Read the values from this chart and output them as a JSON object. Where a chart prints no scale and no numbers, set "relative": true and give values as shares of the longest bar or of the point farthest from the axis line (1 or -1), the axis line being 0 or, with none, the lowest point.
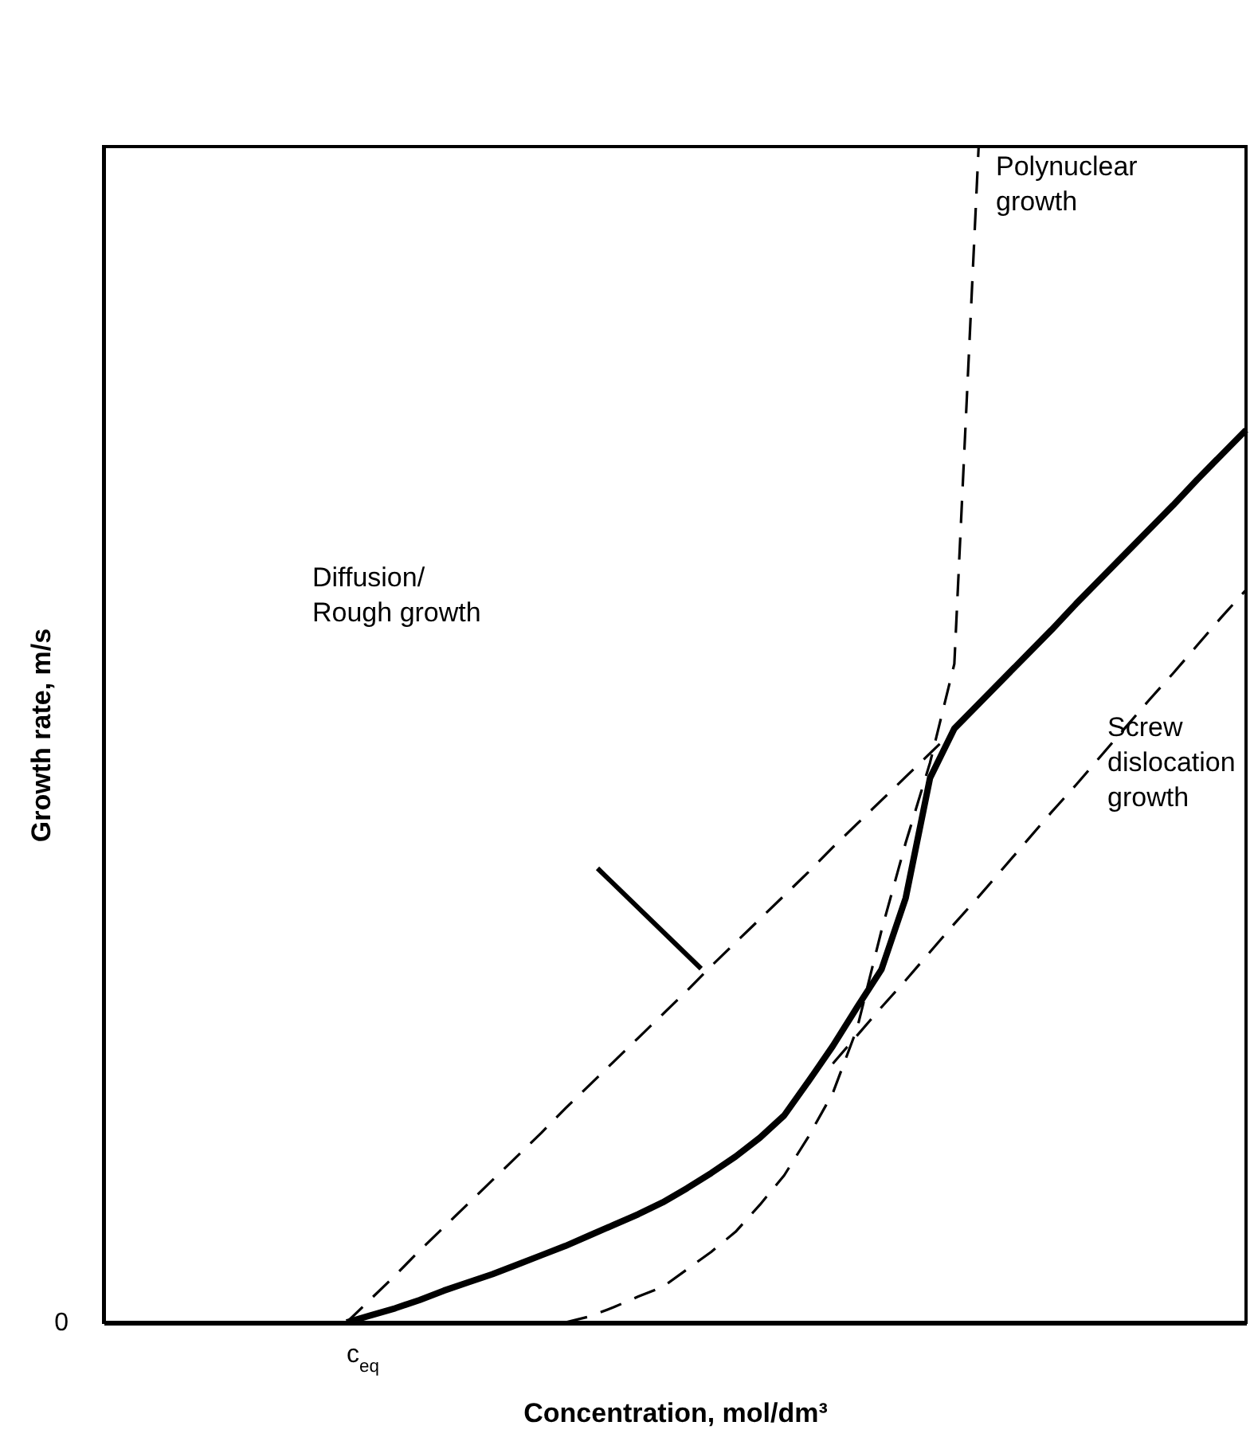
{
  "chart_data": {
    "type": "line",
    "relative": true,
    "xlabel": "Concentration, mol/dm³",
    "ylabel": "Growth rate, m/s",
    "categories": [
      null,
      null,
      null,
      null,
      null,
      null,
      null,
      null,
      null,
      null,
      null,
      null,
      null,
      null,
      null,
      null,
      null,
      null,
      null,
      null,
      null,
      null,
      null,
      null,
      null,
      null,
      null,
      null,
      null,
      null,
      null,
      null,
      null,
      null,
      null,
      null,
      null,
      null,
      null,
      null,
      null,
      null,
      null,
      null,
      null,
      null,
      null,
      null
    ],
    "series": [
      {
        "color": "#000000",
        "line_style": "solid",
        "values": [
          null,
          null,
          null,
          null,
          null,
          null,
          null,
          null,
          null,
          null,
          0,
          0.006,
          0.012,
          0.019,
          0.027,
          0.034,
          0.041,
          0.049,
          0.057,
          0.065,
          0.074,
          0.083,
          0.092,
          0.102,
          0.114,
          0.127,
          0.141,
          0.157,
          0.176,
          0.205,
          0.235,
          0.268,
          0.3,
          0.361,
          0.463,
          0.505,
          0.526,
          0.547,
          0.568,
          0.589,
          0.611,
          0.632,
          0.653,
          0.674,
          0.695,
          0.717,
          0.738,
          0.759
        ]
      },
      {
        "color": "#000000",
        "line_style": "dashed",
        "values": [
          null,
          null,
          null,
          null,
          null,
          null,
          null,
          null,
          null,
          null,
          0,
          0.02,
          0.04,
          0.061,
          0.081,
          0.101,
          0.121,
          0.141,
          0.161,
          0.182,
          0.202,
          0.222,
          0.242,
          0.262,
          0.282,
          0.303,
          0.323,
          0.343,
          0.363,
          0.383,
          0.404,
          0.424,
          0.444,
          0.464,
          0.484,
          0.504,
          null,
          null,
          null,
          null,
          null,
          null,
          null,
          null,
          null,
          null,
          null,
          null
        ]
      },
      {
        "color": "#000000",
        "line_style": "dashed",
        "values": [
          null,
          null,
          null,
          null,
          null,
          null,
          null,
          null,
          null,
          null,
          null,
          null,
          null,
          null,
          null,
          null,
          null,
          null,
          null,
          0,
          0.005,
          0.013,
          0.022,
          0.03,
          0.045,
          0.06,
          0.077,
          0.1,
          0.125,
          0.158,
          0.195,
          0.25,
          0.333,
          0.408,
          0.476,
          0.56,
          1,
          null,
          null,
          null,
          null,
          null,
          null,
          null,
          null,
          null,
          null,
          null
        ]
      },
      {
        "color": "#000000",
        "line_style": "dashed",
        "values": [
          null,
          null,
          null,
          null,
          null,
          null,
          null,
          null,
          null,
          null,
          null,
          null,
          null,
          null,
          null,
          null,
          null,
          null,
          null,
          null,
          null,
          null,
          null,
          null,
          null,
          null,
          null,
          null,
          null,
          null,
          0.22,
          0.244,
          0.268,
          0.291,
          0.315,
          0.339,
          0.362,
          0.386,
          0.41,
          0.434,
          0.457,
          0.481,
          0.505,
          0.529,
          0.552,
          0.576,
          0.6,
          0.623
        ]
      }
    ],
    "annotations": [
      "0",
      "c$_{eq}$",
      "Polynuclear\ngrowth",
      "Diffusion/\nRough growth",
      "Screw\ndislocation\ngrowth"
    ]
  }
}
